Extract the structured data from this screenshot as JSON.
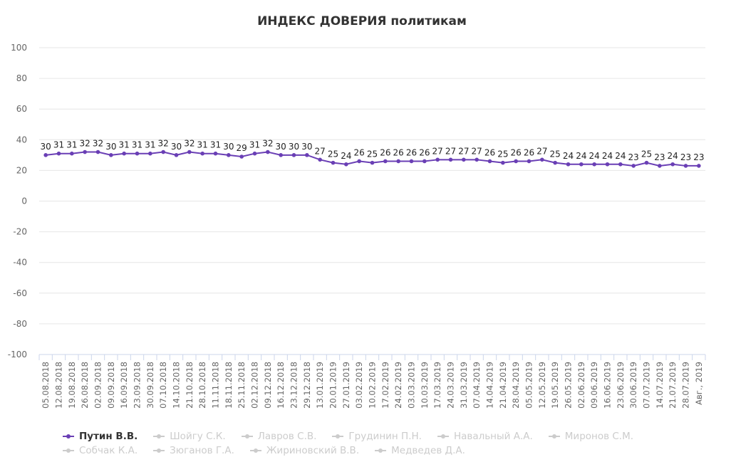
{
  "chart_data": {
    "type": "line",
    "title": "ИНДЕКС ДОВЕРИЯ политикам",
    "xlabel": "",
    "ylabel": "",
    "ylim": [
      -100,
      100
    ],
    "yticks": [
      100,
      80,
      60,
      40,
      20,
      0,
      -20,
      -40,
      -60,
      -80,
      -100
    ],
    "grid": true,
    "legend_position": "bottom",
    "categories": [
      "05.08.2018",
      "12.08.2018",
      "19.08.2018",
      "26.08.2018",
      "02.09.2018",
      "09.09.2018",
      "16.09.2018",
      "23.09.2018",
      "30.09.2018",
      "07.10.2018",
      "14.10.2018",
      "21.10.2018",
      "28.10.2018",
      "11.11.2018",
      "18.11.2018",
      "25.11.2018",
      "02.12.2018",
      "09.12.2018",
      "16.12.2018",
      "23.12.2018",
      "29.12.2018",
      "13.01.2019",
      "20.01.2019",
      "27.01.2019",
      "03.02.2019",
      "10.02.2019",
      "17.02.2019",
      "24.02.2019",
      "03.03.2019",
      "10.03.2019",
      "17.03.2019",
      "24.03.2019",
      "31.03.2019",
      "07.04.2019",
      "14.04.2019",
      "21.04.2019",
      "28.04.2019",
      "05.05.2019",
      "12.05.2019",
      "19.05.2019",
      "26.05.2019",
      "02.06.2019",
      "09.06.2019",
      "16.06.2019",
      "23.06.2019",
      "30.06.2019",
      "07.07.2019",
      "14.07.2019",
      "21.07.2019",
      "28.07.2019",
      "Авг., 2019"
    ],
    "series": [
      {
        "name": "Путин В.В.",
        "visible": true,
        "color": "#6a3fb5",
        "values": [
          30,
          31,
          31,
          32,
          32,
          30,
          31,
          31,
          31,
          32,
          30,
          32,
          31,
          31,
          30,
          29,
          31,
          32,
          30,
          30,
          30,
          27,
          25,
          24,
          26,
          25,
          26,
          26,
          26,
          26,
          27,
          27,
          27,
          27,
          26,
          25,
          26,
          26,
          27,
          25,
          24,
          24,
          24,
          24,
          24,
          23,
          25,
          23,
          24,
          23,
          23
        ]
      },
      {
        "name": "Шойгу С.К.",
        "visible": false,
        "color": "#cccccc"
      },
      {
        "name": "Лавров С.В.",
        "visible": false,
        "color": "#cccccc"
      },
      {
        "name": "Грудинин П.Н.",
        "visible": false,
        "color": "#cccccc"
      },
      {
        "name": "Навальный А.А.",
        "visible": false,
        "color": "#cccccc"
      },
      {
        "name": "Миронов С.М.",
        "visible": false,
        "color": "#cccccc"
      },
      {
        "name": "Собчак К.А.",
        "visible": false,
        "color": "#cccccc"
      },
      {
        "name": "Зюганов Г.А.",
        "visible": false,
        "color": "#cccccc"
      },
      {
        "name": "Жириновский В.В.",
        "visible": false,
        "color": "#cccccc"
      },
      {
        "name": "Медведев Д.А.",
        "visible": false,
        "color": "#cccccc"
      }
    ]
  }
}
